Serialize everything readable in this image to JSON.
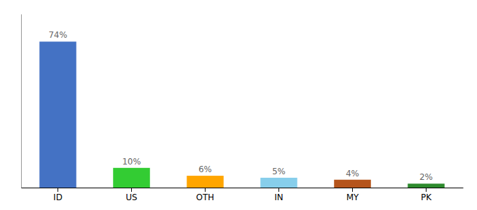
{
  "chart_data": {
    "type": "bar",
    "categories": [
      "ID",
      "US",
      "OTH",
      "IN",
      "MY",
      "PK"
    ],
    "values": [
      74,
      10,
      6,
      5,
      4,
      2
    ],
    "value_labels": [
      "74%",
      "10%",
      "6%",
      "5%",
      "4%",
      "2%"
    ],
    "colors": [
      "#4472C4",
      "#33CC33",
      "#FFA500",
      "#87CEEB",
      "#B5541B",
      "#2D8A2D"
    ],
    "ylim": [
      0,
      88
    ],
    "data_labels": true,
    "tick_labels": "x",
    "grid": false
  }
}
